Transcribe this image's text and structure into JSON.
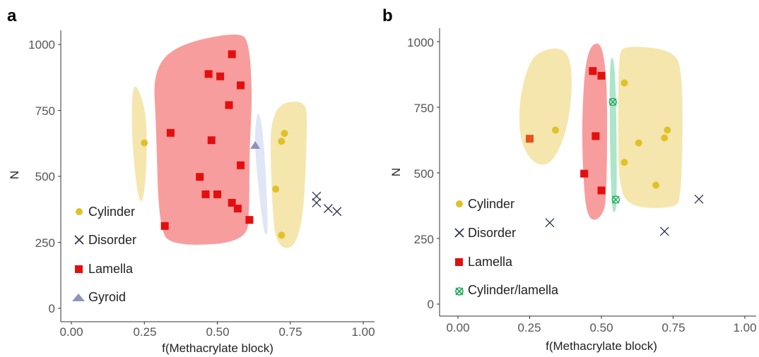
{
  "chart_data": [
    {
      "panel_label": "a",
      "type": "scatter",
      "xlabel": "f(Methacrylate block)",
      "ylabel": "N",
      "xlim": [
        -0.07,
        1.05
      ],
      "ylim": [
        -30,
        1050
      ],
      "xticks": [
        0.0,
        0.25,
        0.5,
        0.75,
        1.0
      ],
      "xtick_labels": [
        "0.00",
        "0.25",
        "0.50",
        "0.75",
        "1.00"
      ],
      "yticks": [
        0,
        250,
        500,
        750,
        1000
      ],
      "ytick_labels": [
        "0",
        "250",
        "500",
        "750",
        "1000"
      ],
      "grid": false,
      "legend_position": "inside-left",
      "region_colors": {
        "Cylinder": "#f3e2a0",
        "Lamella": "#f78c8c",
        "Gyroid": "#d9e2f3"
      },
      "regions": [
        {
          "phase": "Cylinder",
          "points": [
            [
              0.21,
              880
            ],
            [
              0.255,
              760
            ],
            [
              0.26,
              600
            ],
            [
              0.25,
              420
            ],
            [
              0.23,
              395
            ],
            [
              0.205,
              650
            ]
          ]
        },
        {
          "phase": "Lamella",
          "points": [
            [
              0.28,
              900
            ],
            [
              0.36,
              1000
            ],
            [
              0.58,
              1050
            ],
            [
              0.61,
              1000
            ],
            [
              0.62,
              800
            ],
            [
              0.61,
              600
            ],
            [
              0.61,
              380
            ],
            [
              0.6,
              250
            ],
            [
              0.35,
              235
            ],
            [
              0.3,
              300
            ],
            [
              0.29,
              700
            ]
          ]
        },
        {
          "phase": "Gyroid",
          "points": [
            [
              0.64,
              770
            ],
            [
              0.66,
              640
            ],
            [
              0.675,
              300
            ],
            [
              0.665,
              265
            ],
            [
              0.65,
              360
            ],
            [
              0.625,
              640
            ]
          ]
        },
        {
          "phase": "Cylinder",
          "points": [
            [
              0.68,
              765
            ],
            [
              0.8,
              795
            ],
            [
              0.81,
              700
            ],
            [
              0.79,
              240
            ],
            [
              0.7,
              220
            ],
            [
              0.685,
              450
            ]
          ]
        }
      ],
      "series": [
        {
          "name": "Cylinder",
          "marker": "circle",
          "color": "#e0c128",
          "points": [
            [
              0.25,
              627
            ],
            [
              0.73,
              663
            ],
            [
              0.72,
              633
            ],
            [
              0.7,
              452
            ],
            [
              0.72,
              277
            ]
          ]
        },
        {
          "name": "Disorder",
          "marker": "x",
          "color": "#2b2f4a",
          "points": [
            [
              0.84,
              425
            ],
            [
              0.84,
              400
            ],
            [
              0.88,
              378
            ],
            [
              0.91,
              367
            ]
          ]
        },
        {
          "name": "Lamella",
          "marker": "square",
          "color": "#e30f0f",
          "points": [
            [
              0.55,
              963
            ],
            [
              0.47,
              888
            ],
            [
              0.51,
              879
            ],
            [
              0.58,
              845
            ],
            [
              0.54,
              770
            ],
            [
              0.34,
              665
            ],
            [
              0.48,
              637
            ],
            [
              0.58,
              542
            ],
            [
              0.44,
              498
            ],
            [
              0.46,
              432
            ],
            [
              0.5,
              432
            ],
            [
              0.55,
              400
            ],
            [
              0.57,
              378
            ],
            [
              0.61,
              335
            ],
            [
              0.32,
              312
            ]
          ]
        },
        {
          "name": "Gyroid",
          "marker": "triangle",
          "color": "#8f92bd",
          "points": [
            [
              0.63,
              618
            ]
          ]
        }
      ],
      "legend": [
        "Cylinder",
        "Disorder",
        "Lamella",
        "Gyroid"
      ]
    },
    {
      "panel_label": "b",
      "type": "scatter",
      "xlabel": "f(Methacrylate block)",
      "ylabel": "N",
      "xlim": [
        -0.07,
        1.05
      ],
      "ylim": [
        -30,
        1050
      ],
      "xticks": [
        0.0,
        0.25,
        0.5,
        0.75,
        1.0
      ],
      "xtick_labels": [
        "0.00",
        "0.25",
        "0.50",
        "0.75",
        "1.00"
      ],
      "yticks": [
        0,
        250,
        500,
        750,
        1000
      ],
      "ytick_labels": [
        "0",
        "250",
        "500",
        "750",
        "1000"
      ],
      "grid": false,
      "legend_position": "inside-left",
      "region_colors": {
        "Cylinder": "#f3e2a0",
        "Lamella": "#f78c8c",
        "Cylinder/lamella": "#9ee0c0"
      },
      "regions": [
        {
          "phase": "Cylinder",
          "points": [
            [
              0.24,
              900
            ],
            [
              0.28,
              965
            ],
            [
              0.37,
              980
            ],
            [
              0.4,
              900
            ],
            [
              0.39,
              700
            ],
            [
              0.34,
              550
            ],
            [
              0.28,
              520
            ],
            [
              0.22,
              600
            ],
            [
              0.21,
              750
            ]
          ]
        },
        {
          "phase": "Lamella",
          "points": [
            [
              0.45,
              995
            ],
            [
              0.52,
              990
            ],
            [
              0.52,
              400
            ],
            [
              0.5,
              330
            ],
            [
              0.46,
              315
            ],
            [
              0.44,
              400
            ],
            [
              0.43,
              700
            ]
          ]
        },
        {
          "phase": "Cylinder/lamella",
          "points": [
            [
              0.53,
              960
            ],
            [
              0.55,
              910
            ],
            [
              0.555,
              385
            ],
            [
              0.545,
              340
            ],
            [
              0.535,
              375
            ],
            [
              0.528,
              700
            ]
          ]
        },
        {
          "phase": "Cylinder",
          "points": [
            [
              0.56,
              950
            ],
            [
              0.58,
              985
            ],
            [
              0.75,
              970
            ],
            [
              0.785,
              880
            ],
            [
              0.78,
              400
            ],
            [
              0.75,
              365
            ],
            [
              0.6,
              368
            ],
            [
              0.56,
              450
            ],
            [
              0.558,
              700
            ]
          ]
        }
      ],
      "series": [
        {
          "name": "Cylinder",
          "marker": "circle",
          "color": "#e0c128",
          "points": [
            [
              0.58,
              843
            ],
            [
              0.34,
              663
            ],
            [
              0.73,
              663
            ],
            [
              0.72,
              633
            ],
            [
              0.63,
              614
            ],
            [
              0.58,
              540
            ],
            [
              0.69,
              453
            ]
          ]
        },
        {
          "name": "Disorder",
          "marker": "x",
          "color": "#2b2f4a",
          "points": [
            [
              0.84,
              400
            ],
            [
              0.32,
              310
            ],
            [
              0.72,
              277
            ]
          ]
        },
        {
          "name": "Lamella",
          "marker": "square",
          "color": "#e30f0f",
          "points": [
            [
              0.47,
              888
            ],
            [
              0.5,
              870
            ],
            [
              0.48,
              640
            ],
            [
              0.44,
              497
            ],
            [
              0.5,
              433
            ]
          ]
        },
        {
          "name": "Lamella",
          "marker": "square",
          "color": "#e8531c",
          "legend": false,
          "points": [
            [
              0.25,
              630
            ]
          ]
        },
        {
          "name": "Cylinder/lamella",
          "marker": "xcircle",
          "color": "#1ea95a",
          "points": [
            [
              0.54,
              770
            ],
            [
              0.55,
              398
            ]
          ]
        }
      ],
      "legend": [
        "Cylinder",
        "Disorder",
        "Lamella",
        "Cylinder/lamella"
      ]
    }
  ]
}
